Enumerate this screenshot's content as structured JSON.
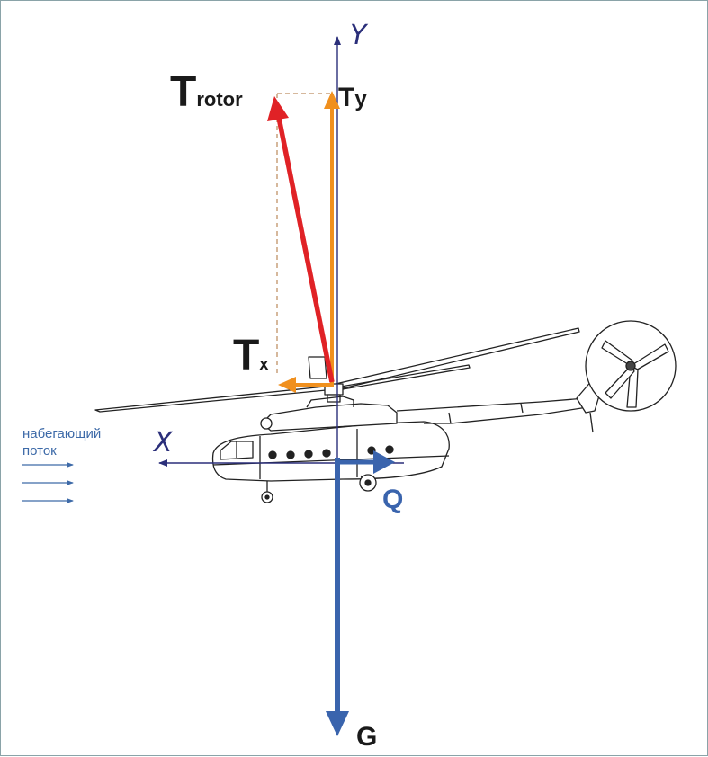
{
  "labels": {
    "t_rotor_main": "T",
    "t_rotor_sub": "rotor",
    "t_y_main": "T",
    "t_y_sub": "y",
    "t_x_main": "T",
    "t_x_sub": "x",
    "axis_y": "Y",
    "axis_x": "X",
    "q": "Q",
    "g": "G",
    "flow_line1": "набегающий",
    "flow_line2": "поток"
  },
  "colors": {
    "t_rotor": "#e02226",
    "t_components": "#f0901e",
    "q_and_g": "#3a64ad",
    "axes": "#2b2f7a",
    "flow": "#3d6aa8",
    "dashed": "#c9a07c"
  }
}
